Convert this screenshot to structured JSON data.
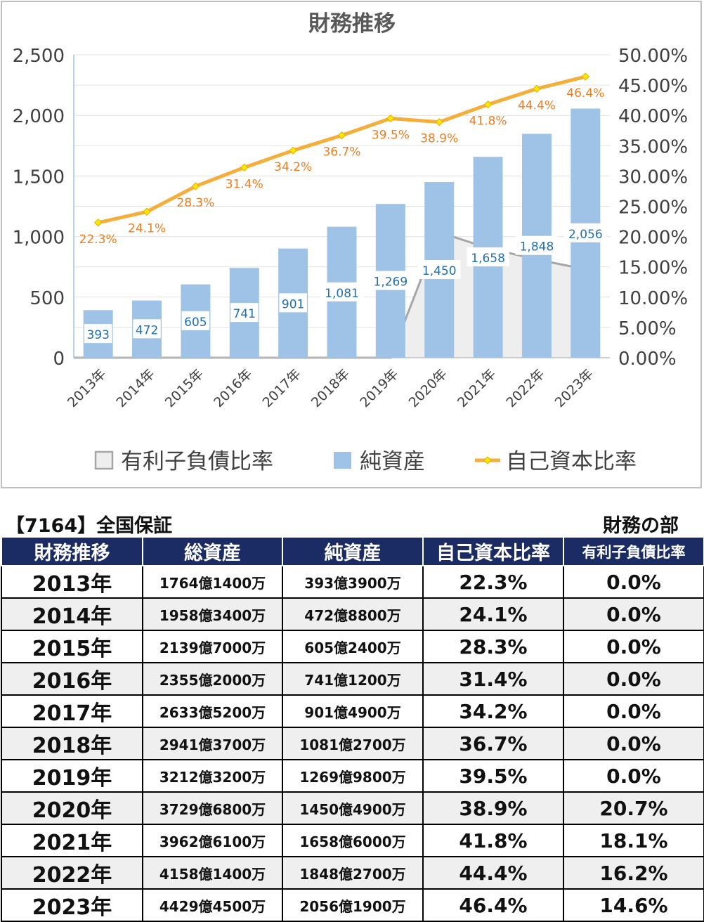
{
  "chart_data": {
    "title": "財務推移",
    "type": "bar+line",
    "categories": [
      "2013年",
      "2014年",
      "2015年",
      "2016年",
      "2017年",
      "2018年",
      "2019年",
      "2020年",
      "2021年",
      "2022年",
      "2023年"
    ],
    "series": [
      {
        "name": "有利子負債比率",
        "type": "area",
        "axis": "right",
        "color": "#a6a6a6",
        "fill": "#eeeeee",
        "values": [
          0.0,
          0.0,
          0.0,
          0.0,
          0.0,
          0.0,
          0.0,
          20.7,
          18.1,
          16.2,
          14.6
        ]
      },
      {
        "name": "純資産",
        "type": "bar",
        "axis": "left",
        "color": "#9fc3e7",
        "values": [
          393,
          472,
          605,
          741,
          901,
          1081,
          1269,
          1450,
          1658,
          1848,
          2056
        ],
        "labels": [
          "393",
          "472",
          "605",
          "741",
          "901",
          "1,081",
          "1,269",
          "1,450",
          "1,658",
          "1,848",
          "2,056"
        ]
      },
      {
        "name": "自己資本比率",
        "type": "line",
        "axis": "right",
        "color": "#f5ae3a",
        "marker_color": "#ffe600",
        "label_color": "#ee7d22",
        "values": [
          22.3,
          24.1,
          28.3,
          31.4,
          34.2,
          36.7,
          39.5,
          38.9,
          41.8,
          44.4,
          46.4
        ],
        "labels": [
          "22.3%",
          "24.1%",
          "28.3%",
          "31.4%",
          "34.2%",
          "36.7%",
          "39.5%",
          "38.9%",
          "41.8%",
          "44.4%",
          "46.4%"
        ]
      }
    ],
    "y_left": {
      "min": 0,
      "max": 2500,
      "ticks": [
        "0",
        "500",
        "1,000",
        "1,500",
        "2,000",
        "2,500"
      ]
    },
    "y_right": {
      "min": 0,
      "max": 50,
      "ticks": [
        "0.00%",
        "5.00%",
        "10.00%",
        "15.00%",
        "20.00%",
        "25.00%",
        "30.00%",
        "35.00%",
        "40.00%",
        "45.00%",
        "50.00%"
      ]
    },
    "grid": true,
    "legend_position": "bottom"
  },
  "table": {
    "company": "【7164】全国保証",
    "section": "財務の部",
    "headers": [
      "財務推移",
      "総資産",
      "純資産",
      "自己資本比率",
      "有利子負債比率"
    ],
    "rows": [
      [
        "2013年",
        "1764億1400万",
        "393億3900万",
        "22.3%",
        "0.0%"
      ],
      [
        "2014年",
        "1958億3400万",
        "472億8800万",
        "24.1%",
        "0.0%"
      ],
      [
        "2015年",
        "2139億7000万",
        "605億2400万",
        "28.3%",
        "0.0%"
      ],
      [
        "2016年",
        "2355億2000万",
        "741億1200万",
        "31.4%",
        "0.0%"
      ],
      [
        "2017年",
        "2633億5200万",
        "901億4900万",
        "34.2%",
        "0.0%"
      ],
      [
        "2018年",
        "2941億3700万",
        "1081億2700万",
        "36.7%",
        "0.0%"
      ],
      [
        "2019年",
        "3212億3200万",
        "1269億9800万",
        "39.5%",
        "0.0%"
      ],
      [
        "2020年",
        "3729億6800万",
        "1450億4900万",
        "38.9%",
        "20.7%"
      ],
      [
        "2021年",
        "3962億6100万",
        "1658億6000万",
        "41.8%",
        "18.1%"
      ],
      [
        "2022年",
        "4158億1400万",
        "1848億2700万",
        "44.4%",
        "16.2%"
      ],
      [
        "2023年",
        "4429億4500万",
        "2056億1900万",
        "46.4%",
        "14.6%"
      ]
    ]
  }
}
